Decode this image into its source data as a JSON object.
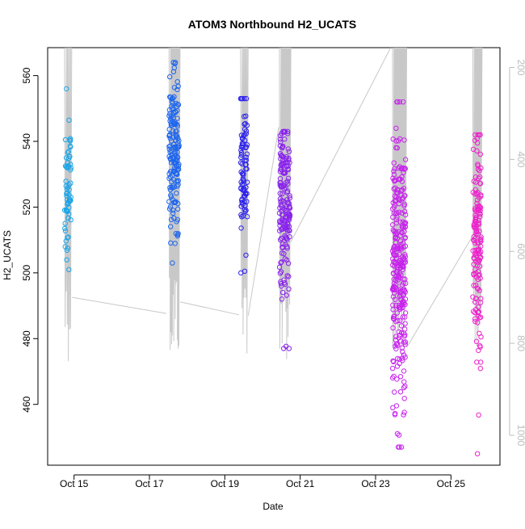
{
  "chart_data": {
    "type": "scatter",
    "title": "ATOM3 Northbound H2_UCATS",
    "xlabel": "Date",
    "ylabel": "H2_UCATS",
    "x_unit": "days since Oct 14 00:00",
    "xlim": [
      14.3,
      26.3
    ],
    "ylim": [
      441.5,
      568.5
    ],
    "y2lim": [
      1065,
      157
    ],
    "x_ticks": [
      {
        "value": 15,
        "label": "Oct 15"
      },
      {
        "value": 17,
        "label": "Oct 17"
      },
      {
        "value": 19,
        "label": "Oct 19"
      },
      {
        "value": 21,
        "label": "Oct 21"
      },
      {
        "value": 23,
        "label": "Oct 23"
      },
      {
        "value": 25,
        "label": "Oct 25"
      }
    ],
    "y_ticks": [
      460,
      480,
      500,
      520,
      540,
      560
    ],
    "y2_ticks": [
      200,
      400,
      600,
      800,
      1000
    ],
    "y2_axis_color": "#bdbdbd",
    "pressure_line_color": "#c8c8c8",
    "point_color_start": "#1aa5e8",
    "point_color_mid": "#2233ee",
    "point_color_end": "#ee22dd",
    "grid": false,
    "legend": "none",
    "flights": [
      {
        "t_start": 14.75,
        "t_end": 14.92,
        "h2_min": 501,
        "h2_max": 556,
        "h2_center": 525,
        "n": 65,
        "color": "#1aa5e8"
      },
      {
        "t_start": 17.52,
        "t_end": 17.79,
        "h2_min": 503,
        "h2_max": 564,
        "h2_center": 536,
        "n": 170,
        "color": "#1e66ee"
      },
      {
        "t_start": 19.42,
        "t_end": 19.6,
        "h2_min": 500,
        "h2_max": 553,
        "h2_center": 530,
        "n": 85,
        "color": "#2d22ee"
      },
      {
        "t_start": 20.45,
        "t_end": 20.73,
        "h2_min": 477,
        "h2_max": 543,
        "h2_center": 520,
        "n": 170,
        "color": "#8a22ee"
      },
      {
        "t_start": 23.45,
        "t_end": 23.8,
        "h2_min": 447,
        "h2_max": 552,
        "h2_center": 502,
        "n": 290,
        "color": "#c822ee"
      },
      {
        "t_start": 25.58,
        "t_end": 25.8,
        "h2_min": 445,
        "h2_max": 542,
        "h2_center": 510,
        "n": 150,
        "color": "#ee22cc"
      }
    ],
    "pressure_transits": [
      {
        "t": [
          14.95,
          17.45
        ],
        "p": [
          700,
          735
        ]
      },
      {
        "t": [
          17.82,
          19.38
        ],
        "p": [
          710,
          738
        ]
      },
      {
        "t": [
          19.62,
          20.43
        ],
        "p": [
          740,
          330
        ]
      },
      {
        "t": [
          20.75,
          23.4
        ],
        "p": [
          580,
          150
        ]
      },
      {
        "t": [
          23.82,
          25.55
        ],
        "p": [
          810,
          570
        ]
      }
    ]
  }
}
